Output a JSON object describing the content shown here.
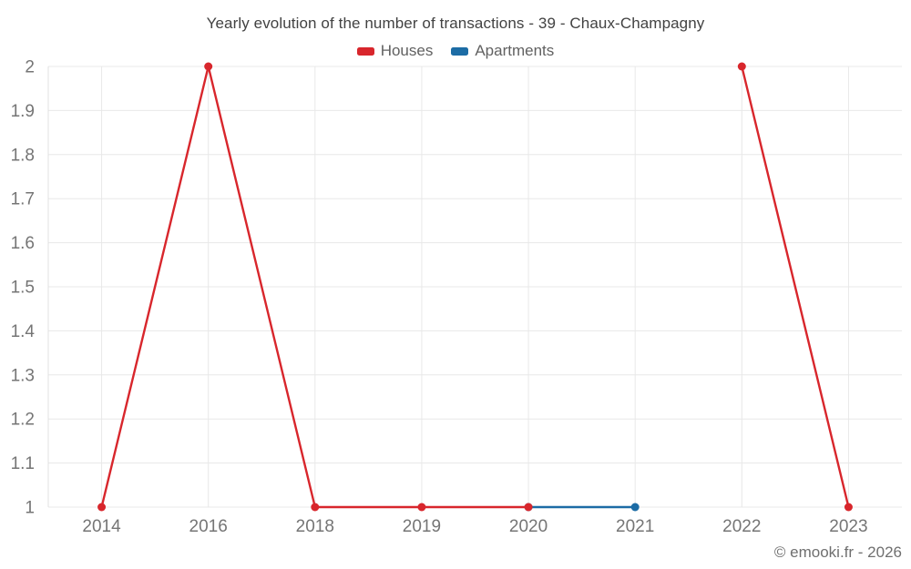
{
  "chart_data": {
    "type": "line",
    "title": "Yearly evolution of the number of transactions - 39 - Chaux-Champagny",
    "xlabel": "",
    "ylabel": "",
    "categories": [
      "2014",
      "2016",
      "2018",
      "2019",
      "2020",
      "2021",
      "2022",
      "2023"
    ],
    "series": [
      {
        "name": "Houses",
        "color": "#d8262c",
        "values": [
          1,
          2,
          1,
          1,
          1,
          null,
          2,
          1
        ]
      },
      {
        "name": "Apartments",
        "color": "#1c6ca5",
        "values": [
          null,
          null,
          null,
          null,
          1,
          1,
          null,
          null
        ]
      }
    ],
    "ylim": [
      1,
      2
    ],
    "y_tick_values": [
      1,
      1.1,
      1.2,
      1.3,
      1.4,
      1.5,
      1.6,
      1.7,
      1.8,
      1.9,
      2
    ],
    "y_tick_labels": [
      "1",
      "1.1",
      "1.2",
      "1.3",
      "1.4",
      "1.5",
      "1.6",
      "1.7",
      "1.8",
      "1.9",
      "2"
    ],
    "grid": true,
    "legend_position": "top",
    "colors": {
      "grid_line": "#e8e8e8",
      "axis_line": "#e0e0e0",
      "tick_label": "#757575",
      "title_text": "#424242",
      "legend_text": "#616161",
      "watermark_text": "#6f6f6f"
    }
  },
  "watermark": "© emooki.fr - 2026"
}
